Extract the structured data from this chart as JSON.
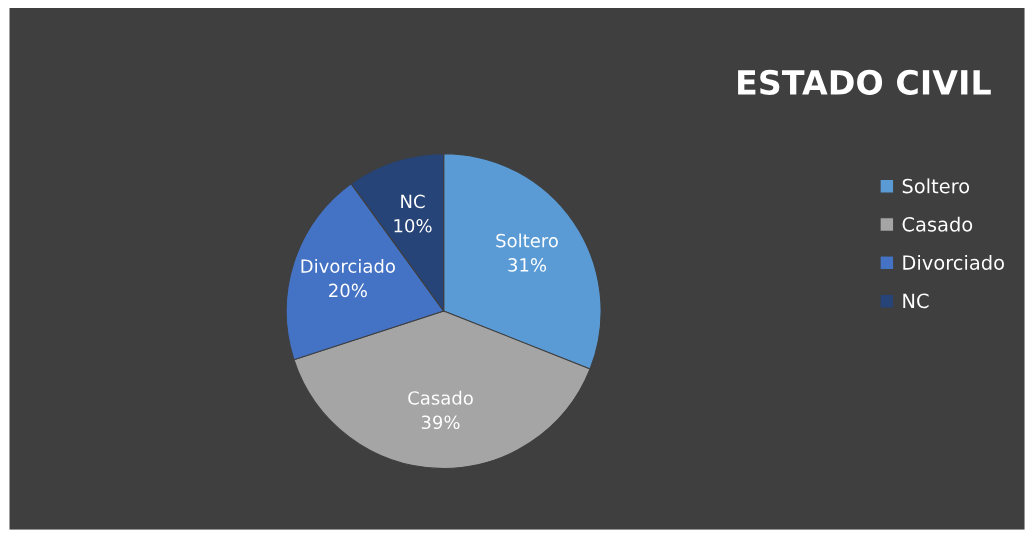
{
  "chart_data": {
    "type": "pie",
    "title": "ESTADO CIVIL",
    "categories": [
      "Soltero",
      "Casado",
      "Divorciado",
      "NC"
    ],
    "values": [
      31,
      39,
      20,
      10
    ],
    "colors": [
      "#5b9bd5",
      "#a5a5a5",
      "#4472c4",
      "#264478"
    ],
    "value_labels": [
      "31%",
      "39%",
      "20%",
      "10%"
    ],
    "legend": "right"
  }
}
